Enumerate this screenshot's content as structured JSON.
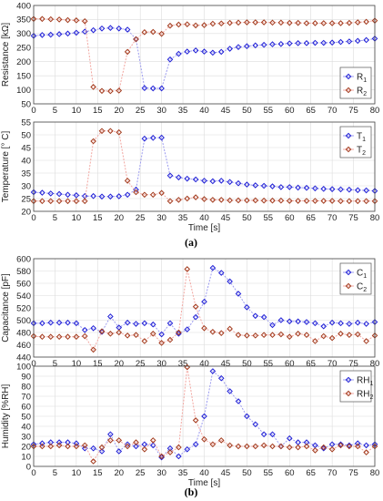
{
  "colors": {
    "s1": "#1f1fd6",
    "s2": "#a23a1c",
    "s2_line": "#f2a6a0",
    "s1_line": "#9b9bef",
    "grid": "#dcdcdc"
  },
  "panel_labels": {
    "a": "(a)",
    "b": "(b)"
  },
  "chart_data": [
    {
      "type": "line",
      "ylabel": "Resistance [kΩ]",
      "xlabel": "",
      "xlim": [
        0,
        80
      ],
      "ylim": [
        50,
        400
      ],
      "xticks": [
        0,
        5,
        10,
        15,
        20,
        25,
        30,
        35,
        40,
        45,
        50,
        55,
        60,
        65,
        70,
        75,
        80
      ],
      "yticks": [
        50,
        100,
        150,
        200,
        250,
        300,
        350,
        400
      ],
      "grid": true,
      "legend_position": "bottom-right",
      "x": [
        0,
        2,
        4,
        6,
        8,
        10,
        12,
        14,
        16,
        18,
        20,
        22,
        24,
        26,
        28,
        30,
        32,
        34,
        36,
        38,
        40,
        42,
        44,
        46,
        48,
        50,
        52,
        54,
        56,
        58,
        60,
        62,
        64,
        66,
        68,
        70,
        72,
        74,
        76,
        78,
        80
      ],
      "series": [
        {
          "name": "R",
          "sub": "1",
          "values": [
            292,
            295,
            296,
            298,
            300,
            303,
            307,
            312,
            318,
            320,
            318,
            314,
            280,
            106,
            105,
            105,
            208,
            228,
            236,
            240,
            236,
            232,
            235,
            246,
            252,
            255,
            258,
            260,
            262,
            263,
            265,
            266,
            266,
            267,
            267,
            268,
            270,
            272,
            274,
            277,
            282
          ]
        },
        {
          "name": "R",
          "sub": "2",
          "values": [
            352,
            352,
            351,
            350,
            348,
            347,
            344,
            110,
            96,
            95,
            97,
            235,
            280,
            305,
            306,
            299,
            328,
            332,
            333,
            329,
            330,
            335,
            336,
            338,
            339,
            340,
            340,
            340,
            339,
            339,
            338,
            338,
            337,
            337,
            337,
            337,
            337,
            338,
            340,
            342,
            346
          ]
        }
      ]
    },
    {
      "type": "line",
      "ylabel": "Temperature [° C]",
      "xlabel": "Time [s]",
      "xlim": [
        0,
        80
      ],
      "ylim": [
        20,
        55
      ],
      "xticks": [
        0,
        5,
        10,
        15,
        20,
        25,
        30,
        35,
        40,
        45,
        50,
        55,
        60,
        65,
        70,
        75,
        80
      ],
      "yticks": [
        20,
        25,
        30,
        35,
        40,
        45,
        50,
        55
      ],
      "grid": true,
      "legend_position": "top-right",
      "x": [
        0,
        2,
        4,
        6,
        8,
        10,
        12,
        14,
        16,
        18,
        20,
        22,
        24,
        26,
        28,
        30,
        32,
        34,
        36,
        38,
        40,
        42,
        44,
        46,
        48,
        50,
        52,
        54,
        56,
        58,
        60,
        62,
        64,
        66,
        68,
        70,
        72,
        74,
        76,
        78,
        80
      ],
      "series": [
        {
          "name": "T",
          "sub": "1",
          "values": [
            27.5,
            27.3,
            27.0,
            26.8,
            26.5,
            26.3,
            26.0,
            26.0,
            25.8,
            25.8,
            25.9,
            26.5,
            28.5,
            48.5,
            48.8,
            48.9,
            34,
            33.3,
            32.8,
            32.5,
            32.0,
            31.8,
            32.0,
            31.5,
            31.0,
            30.5,
            30.2,
            30.0,
            29.8,
            29.5,
            29.5,
            29.3,
            29.2,
            29.0,
            28.8,
            28.7,
            28.6,
            28.5,
            28.3,
            28.2,
            28.0
          ]
        },
        {
          "name": "T",
          "sub": "2",
          "values": [
            24.0,
            24.0,
            24.0,
            24.0,
            24.0,
            24.0,
            24.0,
            47.5,
            51.5,
            51.5,
            51.0,
            32,
            27.5,
            26.5,
            26.5,
            27.2,
            24.0,
            24.5,
            25.0,
            25.5,
            24.8,
            24.5,
            24.5,
            24.3,
            24.3,
            24.3,
            24.3,
            24.2,
            24.2,
            24.2,
            24.1,
            24.1,
            24.1,
            24.1,
            24.1,
            24.1,
            24.0,
            24.0,
            24.0,
            24.0,
            24.0
          ]
        }
      ]
    },
    {
      "type": "line",
      "ylabel": "Capacitance [pF]",
      "xlabel": "",
      "xlim": [
        0,
        80
      ],
      "ylim": [
        440,
        600
      ],
      "xticks": [
        0,
        5,
        10,
        15,
        20,
        25,
        30,
        35,
        40,
        45,
        50,
        55,
        60,
        65,
        70,
        75,
        80
      ],
      "yticks": [
        440,
        460,
        480,
        500,
        520,
        540,
        560,
        580,
        600
      ],
      "grid": true,
      "legend_position": "top-right",
      "x": [
        0,
        2,
        4,
        6,
        8,
        10,
        12,
        14,
        16,
        18,
        20,
        22,
        24,
        26,
        28,
        30,
        32,
        34,
        36,
        38,
        40,
        42,
        44,
        46,
        48,
        50,
        52,
        54,
        56,
        58,
        60,
        62,
        64,
        66,
        68,
        70,
        72,
        74,
        76,
        78,
        80
      ],
      "series": [
        {
          "name": "C",
          "sub": "1",
          "values": [
            495,
            495,
            496,
            496,
            496,
            495,
            484,
            487,
            481,
            506,
            488,
            496,
            494,
            495,
            493,
            477,
            495,
            478,
            485,
            505,
            530,
            585,
            577,
            563,
            543,
            521,
            507,
            505,
            492,
            500,
            498,
            498,
            497,
            495,
            490,
            496,
            495,
            494,
            496,
            494,
            497
          ]
        },
        {
          "name": "C",
          "sub": "2",
          "values": [
            474,
            473,
            473,
            473,
            473,
            473,
            474,
            452,
            482,
            478,
            480,
            475,
            476,
            466,
            478,
            463,
            468,
            480,
            583,
            522,
            487,
            481,
            479,
            486,
            476,
            475,
            475,
            476,
            476,
            477,
            473,
            478,
            476,
            466,
            474,
            471,
            478,
            476,
            477,
            466,
            475
          ]
        }
      ]
    },
    {
      "type": "line",
      "ylabel": "Humidity [%RH]",
      "xlabel": "Time [s]",
      "xlim": [
        0,
        80
      ],
      "ylim": [
        0,
        100
      ],
      "xticks": [
        0,
        5,
        10,
        15,
        20,
        25,
        30,
        35,
        40,
        45,
        50,
        55,
        60,
        65,
        70,
        75,
        80
      ],
      "yticks": [
        0,
        10,
        20,
        30,
        40,
        50,
        60,
        70,
        80,
        90,
        100
      ],
      "grid": true,
      "legend_position": "top-right",
      "x": [
        0,
        2,
        4,
        6,
        8,
        10,
        12,
        14,
        16,
        18,
        20,
        22,
        24,
        26,
        28,
        30,
        32,
        34,
        36,
        38,
        40,
        42,
        44,
        46,
        48,
        50,
        52,
        54,
        56,
        58,
        60,
        62,
        64,
        66,
        68,
        70,
        72,
        74,
        76,
        78,
        80
      ],
      "series": [
        {
          "name": "RH",
          "sub": "1",
          "values": [
            22,
            23,
            24,
            24,
            24,
            23,
            18,
            18,
            15,
            32,
            15,
            22,
            20,
            22,
            21,
            9,
            18,
            10,
            17,
            22,
            50,
            95,
            88,
            75,
            65,
            50,
            42,
            32,
            32,
            20,
            28,
            24,
            24,
            21,
            18,
            22,
            22,
            21,
            23,
            21,
            22
          ]
        },
        {
          "name": "RH",
          "sub": "2",
          "values": [
            20,
            20,
            20,
            21,
            20,
            20,
            21,
            5,
            19,
            26,
            26,
            20,
            24,
            17,
            26,
            10,
            14,
            19,
            99,
            46,
            27,
            22,
            26,
            21,
            20,
            20,
            20,
            21,
            20,
            20,
            19,
            19,
            20,
            16,
            19,
            17,
            21,
            20,
            20,
            14,
            20
          ]
        }
      ]
    }
  ]
}
